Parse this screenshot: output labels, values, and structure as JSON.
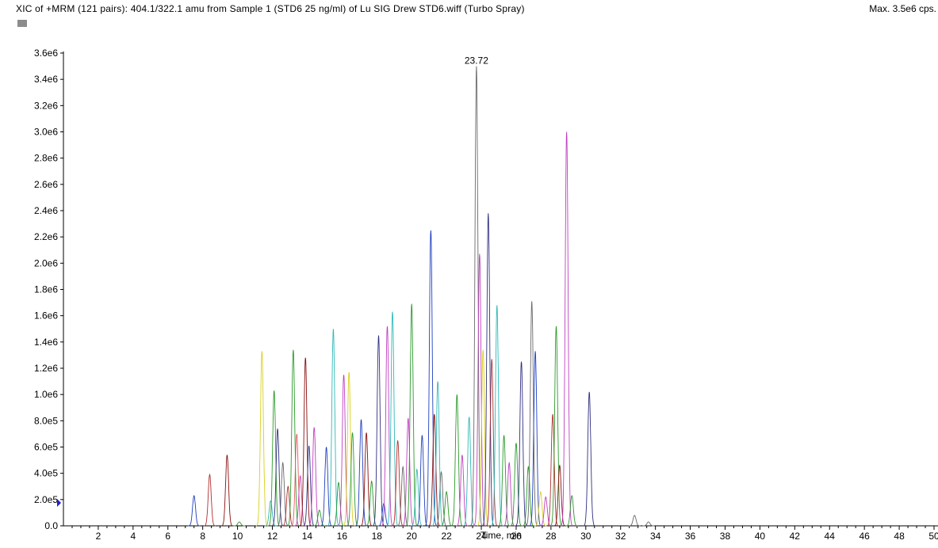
{
  "header": {
    "title": "XIC of +MRM (121 pairs): 404.1/322.1 amu from Sample 1 (STD6 25 ng/ml) of Lu SIG Drew STD6.wiff (Turbo Spray)",
    "max_label": "Max. 3.5e6 cps."
  },
  "chart_data": {
    "type": "line",
    "title": "",
    "xlabel": "Time, min",
    "ylabel": "",
    "xlim": [
      0,
      50
    ],
    "ylim": [
      0,
      3600000.0
    ],
    "x_ticks": [
      2,
      4,
      6,
      8,
      10,
      12,
      14,
      16,
      18,
      20,
      22,
      24,
      26,
      28,
      30,
      32,
      34,
      36,
      38,
      40,
      42,
      44,
      46,
      48,
      50
    ],
    "y_ticks": [
      {
        "v": 0.0,
        "label": "0.0"
      },
      {
        "v": 200000.0,
        "label": "2.0e5"
      },
      {
        "v": 400000.0,
        "label": "4.0e5"
      },
      {
        "v": 600000.0,
        "label": "6.0e5"
      },
      {
        "v": 800000.0,
        "label": "8.0e5"
      },
      {
        "v": 1000000.0,
        "label": "1.0e6"
      },
      {
        "v": 1200000.0,
        "label": "1.2e6"
      },
      {
        "v": 1400000.0,
        "label": "1.4e6"
      },
      {
        "v": 1600000.0,
        "label": "1.6e6"
      },
      {
        "v": 1800000.0,
        "label": "1.8e6"
      },
      {
        "v": 2000000.0,
        "label": "2.0e6"
      },
      {
        "v": 2200000.0,
        "label": "2.2e6"
      },
      {
        "v": 2400000.0,
        "label": "2.4e6"
      },
      {
        "v": 2600000.0,
        "label": "2.6e6"
      },
      {
        "v": 2800000.0,
        "label": "2.8e6"
      },
      {
        "v": 3000000.0,
        "label": "3.0e6"
      },
      {
        "v": 3200000.0,
        "label": "3.2e6"
      },
      {
        "v": 3400000.0,
        "label": "3.4e6"
      },
      {
        "v": 3600000.0,
        "label": "3.6e6"
      }
    ],
    "annotations": [
      {
        "x": 23.72,
        "y": 3500000.0,
        "text": "23.72"
      }
    ],
    "peak_colors": [
      "#1f3fbf",
      "#b03030",
      "#2a9a2a",
      "#c040c0",
      "#30b8b8",
      "#d8d020",
      "#6a6a6a",
      "#303080",
      "#8a1010",
      "#e06060"
    ],
    "peaks": [
      {
        "x": 7.5,
        "y": 230000.0,
        "c": 0
      },
      {
        "x": 8.4,
        "y": 390000.0,
        "c": 1
      },
      {
        "x": 9.4,
        "y": 540000.0,
        "c": 8
      },
      {
        "x": 10.1,
        "y": 30000.0,
        "c": 2
      },
      {
        "x": 11.4,
        "y": 1330000.0,
        "c": 5
      },
      {
        "x": 11.9,
        "y": 190000.0,
        "c": 4
      },
      {
        "x": 12.1,
        "y": 1030000.0,
        "c": 2
      },
      {
        "x": 12.3,
        "y": 740000.0,
        "c": 7
      },
      {
        "x": 12.6,
        "y": 480000.0,
        "c": 6
      },
      {
        "x": 12.9,
        "y": 300000.0,
        "c": 1
      },
      {
        "x": 13.2,
        "y": 1340000.0,
        "c": 2
      },
      {
        "x": 13.4,
        "y": 700000.0,
        "c": 9
      },
      {
        "x": 13.6,
        "y": 380000.0,
        "c": 3
      },
      {
        "x": 13.9,
        "y": 1280000.0,
        "c": 8
      },
      {
        "x": 14.1,
        "y": 610000.0,
        "c": 7
      },
      {
        "x": 14.4,
        "y": 750000.0,
        "c": 3
      },
      {
        "x": 14.7,
        "y": 120000.0,
        "c": 2
      },
      {
        "x": 15.1,
        "y": 600000.0,
        "c": 0
      },
      {
        "x": 15.5,
        "y": 1500000.0,
        "c": 4
      },
      {
        "x": 15.8,
        "y": 330000.0,
        "c": 2
      },
      {
        "x": 16.1,
        "y": 1150000.0,
        "c": 3
      },
      {
        "x": 16.4,
        "y": 1170000.0,
        "c": 5
      },
      {
        "x": 16.6,
        "y": 710000.0,
        "c": 2
      },
      {
        "x": 17.1,
        "y": 810000.0,
        "c": 0
      },
      {
        "x": 17.4,
        "y": 710000.0,
        "c": 8
      },
      {
        "x": 17.7,
        "y": 340000.0,
        "c": 2
      },
      {
        "x": 18.1,
        "y": 1450000.0,
        "c": 7
      },
      {
        "x": 18.4,
        "y": 170000.0,
        "c": 0
      },
      {
        "x": 18.6,
        "y": 1520000.0,
        "c": 3
      },
      {
        "x": 18.9,
        "y": 1630000.0,
        "c": 4
      },
      {
        "x": 19.2,
        "y": 650000.0,
        "c": 1
      },
      {
        "x": 19.5,
        "y": 450000.0,
        "c": 6
      },
      {
        "x": 19.8,
        "y": 820000.0,
        "c": 3
      },
      {
        "x": 20.0,
        "y": 1690000.0,
        "c": 2
      },
      {
        "x": 20.3,
        "y": 430000.0,
        "c": 4
      },
      {
        "x": 20.6,
        "y": 690000.0,
        "c": 0
      },
      {
        "x": 21.1,
        "y": 2250000.0,
        "c": 0
      },
      {
        "x": 21.3,
        "y": 850000.0,
        "c": 8
      },
      {
        "x": 21.5,
        "y": 1100000.0,
        "c": 4
      },
      {
        "x": 21.7,
        "y": 410000.0,
        "c": 6
      },
      {
        "x": 22.0,
        "y": 260000.0,
        "c": 2
      },
      {
        "x": 22.6,
        "y": 1000000.0,
        "c": 2
      },
      {
        "x": 22.9,
        "y": 540000.0,
        "c": 3
      },
      {
        "x": 23.3,
        "y": 830000.0,
        "c": 4
      },
      {
        "x": 23.72,
        "y": 3500000.0,
        "c": 6
      },
      {
        "x": 23.9,
        "y": 2070000.0,
        "c": 3
      },
      {
        "x": 24.1,
        "y": 1340000.0,
        "c": 5
      },
      {
        "x": 24.4,
        "y": 2380000.0,
        "c": 7
      },
      {
        "x": 24.6,
        "y": 1270000.0,
        "c": 1
      },
      {
        "x": 24.9,
        "y": 1680000.0,
        "c": 4
      },
      {
        "x": 25.3,
        "y": 690000.0,
        "c": 2
      },
      {
        "x": 25.6,
        "y": 480000.0,
        "c": 3
      },
      {
        "x": 26.0,
        "y": 630000.0,
        "c": 2
      },
      {
        "x": 26.3,
        "y": 1250000.0,
        "c": 7
      },
      {
        "x": 26.7,
        "y": 450000.0,
        "c": 2
      },
      {
        "x": 26.9,
        "y": 1710000.0,
        "c": 6
      },
      {
        "x": 27.1,
        "y": 1330000.0,
        "c": 0
      },
      {
        "x": 27.4,
        "y": 260000.0,
        "c": 5
      },
      {
        "x": 27.7,
        "y": 220000.0,
        "c": 3
      },
      {
        "x": 28.1,
        "y": 850000.0,
        "c": 1
      },
      {
        "x": 28.3,
        "y": 1520000.0,
        "c": 2
      },
      {
        "x": 28.5,
        "y": 460000.0,
        "c": 8
      },
      {
        "x": 28.9,
        "y": 3000000.0,
        "c": 3
      },
      {
        "x": 29.2,
        "y": 230000.0,
        "c": 2
      },
      {
        "x": 30.2,
        "y": 1020000.0,
        "c": 7
      },
      {
        "x": 32.8,
        "y": 80000.0,
        "c": 6
      },
      {
        "x": 33.6,
        "y": 30000.0,
        "c": 6
      }
    ]
  }
}
